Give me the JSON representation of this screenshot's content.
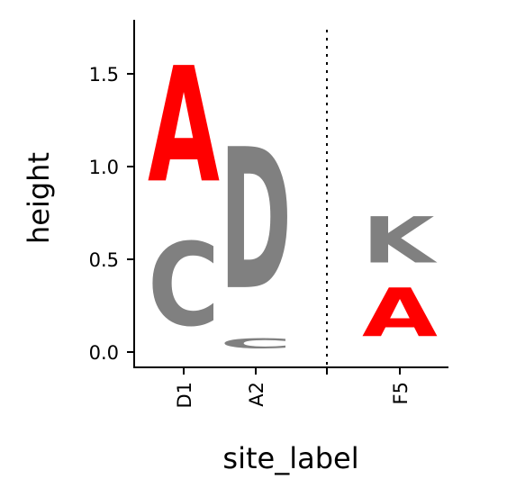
{
  "chart_data": {
    "type": "sequence-logo",
    "xlabel": "site_label",
    "ylabel": "height",
    "ylim": [
      -0.08,
      1.78
    ],
    "yticks": [
      "0.0",
      "0.5",
      "1.0",
      "1.5"
    ],
    "ytick_values": [
      0.0,
      0.5,
      1.0,
      1.5
    ],
    "grid": false,
    "sites": [
      {
        "label": "D1",
        "letters": [
          {
            "letter": "C",
            "bottom": 0.0,
            "top": 0.72,
            "color": "#808080"
          },
          {
            "letter": "A",
            "bottom": 0.72,
            "top": 1.72,
            "color": "#ff0000"
          }
        ]
      },
      {
        "label": "A2",
        "letters": [
          {
            "letter": "C",
            "bottom": 0.0,
            "top": 0.09,
            "color": "#808080"
          },
          {
            "letter": "D",
            "bottom": 0.1,
            "top": 1.32,
            "color": "#808080"
          }
        ]
      },
      {
        "label": "F5",
        "letters": [
          {
            "letter": "A",
            "bottom": 0.0,
            "top": 0.42,
            "color": "#ff0000"
          },
          {
            "letter": "K",
            "bottom": 0.4,
            "top": 0.8,
            "color": "#808080"
          }
        ]
      }
    ],
    "separator": {
      "style": "dotted",
      "between": [
        "A2",
        "F5"
      ]
    }
  }
}
